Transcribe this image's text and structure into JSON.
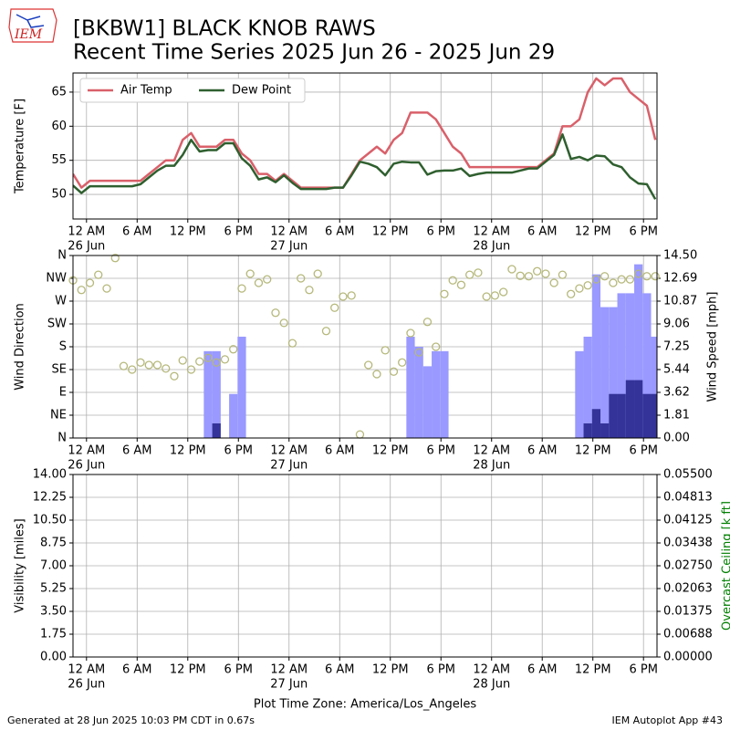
{
  "header": {
    "logo": "IEM",
    "title": [
      "[BKBW1] BLACK KNOB RAWS",
      "Recent Time Series 2025 Jun 26 - 2025 Jun 29"
    ]
  },
  "footer": {
    "left": "Generated at 28 Jun 2025 10:03 PM CDT in 0.67s",
    "right": "IEM Autoplot App #43"
  },
  "chart_data": [
    {
      "type": "line",
      "ylabel": "Temperature [F]",
      "grid": true,
      "legend": "upper left",
      "xlim": [
        -1.6,
        67.6
      ],
      "ylim": [
        46.4,
        67.8
      ],
      "yticks": [
        50,
        55,
        60,
        65
      ],
      "xticks": [
        {
          "value": 0,
          "label": "12 AM"
        },
        {
          "value": 6,
          "label": "6 AM"
        },
        {
          "value": 12,
          "label": "12 PM"
        },
        {
          "value": 18,
          "label": "6 PM"
        },
        {
          "value": 24,
          "label": "12 AM"
        },
        {
          "value": 30,
          "label": "6 AM"
        },
        {
          "value": 36,
          "label": "12 PM"
        },
        {
          "value": 42,
          "label": "6 PM"
        },
        {
          "value": 48,
          "label": "12 AM"
        },
        {
          "value": 54,
          "label": "6 AM"
        },
        {
          "value": 60,
          "label": "12 PM"
        },
        {
          "value": 66,
          "label": "6 PM"
        }
      ],
      "xdates": [
        {
          "value": 0,
          "label": "26 Jun"
        },
        {
          "value": 24,
          "label": "27 Jun"
        },
        {
          "value": 48,
          "label": "28 Jun"
        }
      ],
      "x": [
        -1.6,
        -0.6,
        0.4,
        1.4,
        2.4,
        3.4,
        4.4,
        5.4,
        6.4,
        7.4,
        8.4,
        9.4,
        10.4,
        11.4,
        12.4,
        13.4,
        14.4,
        15.4,
        16.4,
        17.4,
        18.4,
        19.4,
        20.4,
        21.4,
        22.4,
        23.4,
        24.4,
        25.4,
        26.4,
        27.4,
        28.4,
        29.4,
        30.4,
        31.4,
        32.4,
        33.4,
        34.4,
        35.4,
        36.4,
        37.4,
        38.4,
        39.4,
        40.4,
        41.4,
        42.4,
        43.4,
        44.4,
        45.4,
        46.4,
        47.4,
        48.4,
        49.4,
        50.4,
        51.4,
        52.4,
        53.4,
        54.4,
        55.4,
        56.4,
        57.4,
        58.4,
        59.4,
        60.4,
        61.4,
        62.4,
        63.4,
        64.4,
        65.4,
        66.4,
        67.4
      ],
      "series": [
        {
          "name": "Air Temp",
          "color": "#d9606a",
          "values": [
            53,
            51,
            52,
            52,
            52,
            52,
            52,
            52,
            52,
            53,
            54,
            55,
            55,
            58,
            59,
            57,
            57,
            57,
            58,
            58,
            56,
            55,
            53,
            53,
            52,
            53,
            52,
            51,
            51,
            51,
            51,
            51,
            51,
            53,
            55,
            56,
            57,
            56,
            58,
            59,
            62,
            62,
            62,
            61,
            59,
            57,
            56,
            54,
            54,
            54,
            54,
            54,
            54,
            54,
            54,
            54,
            55,
            56,
            60,
            60,
            61,
            65,
            67,
            66,
            67,
            67,
            65,
            64,
            63,
            58
          ]
        },
        {
          "name": "Dew Point",
          "color": "#2f5f2f",
          "values": [
            51.3,
            50.2,
            51.2,
            51.2,
            51.2,
            51.2,
            51.2,
            51.2,
            51.5,
            52.5,
            53.5,
            54.2,
            54.2,
            55.8,
            58,
            56.3,
            56.5,
            56.5,
            57.5,
            57.5,
            55.3,
            54.2,
            52.2,
            52.5,
            51.8,
            52.8,
            51.7,
            50.8,
            50.8,
            50.8,
            50.8,
            51,
            51,
            52.8,
            54.8,
            54.5,
            54,
            52.8,
            54.5,
            54.8,
            54.7,
            54.7,
            52.9,
            53.4,
            53.5,
            53.5,
            53.8,
            52.7,
            53,
            53.2,
            53.2,
            53.2,
            53.2,
            53.5,
            53.8,
            53.8,
            54.8,
            55.8,
            58.8,
            55.2,
            55.5,
            55,
            55.7,
            55.6,
            54.4,
            54,
            52.5,
            51.6,
            51.5,
            49.3
          ]
        }
      ]
    },
    {
      "type": "scatter",
      "ylabel": "Wind Direction",
      "y2label": "Wind Speed [mph]",
      "grid": true,
      "xlim": [
        -1.6,
        67.6
      ],
      "ylim": [
        0,
        360
      ],
      "y2lim": [
        0,
        14.5
      ],
      "yticks": [
        {
          "value": 0,
          "label": "N"
        },
        {
          "value": 45,
          "label": "NE"
        },
        {
          "value": 90,
          "label": "E"
        },
        {
          "value": 135,
          "label": "SE"
        },
        {
          "value": 180,
          "label": "S"
        },
        {
          "value": 225,
          "label": "SW"
        },
        {
          "value": 270,
          "label": "W"
        },
        {
          "value": 315,
          "label": "NW"
        },
        {
          "value": 360,
          "label": "N"
        }
      ],
      "y2ticks": [
        {
          "value": 0,
          "label": "0.00"
        },
        {
          "value": 1.8125,
          "label": "1.81"
        },
        {
          "value": 3.625,
          "label": "3.62"
        },
        {
          "value": 5.4375,
          "label": "5.44"
        },
        {
          "value": 7.25,
          "label": "7.25"
        },
        {
          "value": 9.0625,
          "label": "9.06"
        },
        {
          "value": 10.875,
          "label": "10.87"
        },
        {
          "value": 12.6875,
          "label": "12.69"
        },
        {
          "value": 14.5,
          "label": "14.50"
        }
      ],
      "xticks": [
        {
          "value": 0,
          "label": "12 AM"
        },
        {
          "value": 6,
          "label": "6 AM"
        },
        {
          "value": 12,
          "label": "12 PM"
        },
        {
          "value": 18,
          "label": "6 PM"
        },
        {
          "value": 24,
          "label": "12 AM"
        },
        {
          "value": 30,
          "label": "6 AM"
        },
        {
          "value": 36,
          "label": "12 PM"
        },
        {
          "value": 42,
          "label": "6 PM"
        },
        {
          "value": 48,
          "label": "12 AM"
        },
        {
          "value": 54,
          "label": "6 AM"
        },
        {
          "value": 60,
          "label": "12 PM"
        },
        {
          "value": 66,
          "label": "6 PM"
        }
      ],
      "xdates": [
        {
          "value": 0,
          "label": "26 Jun"
        },
        {
          "value": 24,
          "label": "27 Jun"
        },
        {
          "value": 48,
          "label": "28 Jun"
        }
      ],
      "x": [
        -1.6,
        -0.6,
        0.4,
        1.4,
        2.4,
        3.4,
        4.4,
        5.4,
        6.4,
        7.4,
        8.4,
        9.4,
        10.4,
        11.4,
        12.4,
        13.4,
        14.4,
        15.4,
        16.4,
        17.4,
        18.4,
        19.4,
        20.4,
        21.4,
        22.4,
        23.4,
        24.4,
        25.4,
        26.4,
        27.4,
        28.4,
        29.4,
        30.4,
        31.4,
        32.4,
        33.4,
        34.4,
        35.4,
        36.4,
        37.4,
        38.4,
        39.4,
        40.4,
        41.4,
        42.4,
        43.4,
        44.4,
        45.4,
        46.4,
        47.4,
        48.4,
        49.4,
        50.4,
        51.4,
        52.4,
        53.4,
        54.4,
        55.4,
        56.4,
        57.4,
        58.4,
        59.4,
        60.4,
        61.4,
        62.4,
        63.4,
        64.4,
        65.4,
        66.4,
        67.4
      ],
      "series": [
        {
          "type": "bar",
          "axis": "y2",
          "color": "#9999ff",
          "values": [
            0,
            0,
            0,
            0,
            0,
            0,
            0,
            0,
            0,
            0,
            0,
            0,
            0,
            0,
            0,
            0,
            6.9,
            6.9,
            0,
            3.5,
            8.05,
            0,
            0,
            0,
            0,
            0,
            0,
            0,
            0,
            0,
            0,
            0,
            0,
            0,
            0,
            0,
            0,
            0,
            0,
            0,
            8.05,
            7.25,
            5.7,
            6.9,
            6.9,
            0,
            0,
            0,
            0,
            0,
            0,
            0,
            0,
            0,
            0,
            0,
            0,
            0,
            0,
            0,
            6.9,
            8.05,
            13,
            10.4,
            10.4,
            11.5,
            11.5,
            13.8,
            11.5,
            8.05
          ]
        },
        {
          "type": "bar",
          "axis": "y2",
          "color": "#333399",
          "values": [
            0,
            0,
            0,
            0,
            0,
            0,
            0,
            0,
            0,
            0,
            0,
            0,
            0,
            0,
            0,
            0,
            0,
            1.16,
            0,
            0,
            0,
            0,
            0,
            0,
            0,
            0,
            0,
            0,
            0,
            0,
            0,
            0,
            0,
            0,
            0,
            0,
            0,
            0,
            0,
            0,
            0,
            0,
            0,
            0,
            0,
            0,
            0,
            0,
            0,
            0,
            0,
            0,
            0,
            0,
            0,
            0,
            0,
            0,
            0,
            0,
            0,
            1.16,
            2.3,
            1.16,
            3.5,
            3.5,
            4.6,
            4.6,
            3.5,
            3.5
          ]
        },
        {
          "type": "scatter",
          "color": "#b5b87a",
          "values": [
            311,
            292,
            306,
            322,
            295,
            355,
            142,
            135,
            149,
            144,
            144,
            137,
            122,
            153,
            135,
            151,
            158,
            149,
            155,
            175,
            295,
            324,
            306,
            313,
            247,
            227,
            187,
            315,
            292,
            324,
            211,
            257,
            279,
            281,
            7,
            144,
            126,
            173,
            131,
            149,
            207,
            169,
            229,
            180,
            284,
            311,
            302,
            322,
            326,
            279,
            281,
            288,
            333,
            320,
            319,
            329,
            324,
            306,
            322,
            284,
            295,
            301,
            313,
            319,
            306,
            313,
            313,
            324,
            319,
            319
          ]
        }
      ]
    },
    {
      "type": "line",
      "ylabel": "Visibility [miles]",
      "y2label": "Overcast Ceiling [k ft]",
      "y2label_color": "#008000",
      "grid": true,
      "xlabel": "Plot Time Zone: America/Los_Angeles",
      "xlim": [
        -1.6,
        67.6
      ],
      "ylim": [
        0,
        14
      ],
      "y2lim": [
        0,
        0.055
      ],
      "yticks": [
        {
          "value": 0,
          "label": "0.00"
        },
        {
          "value": 1.75,
          "label": "1.75"
        },
        {
          "value": 3.5,
          "label": "3.50"
        },
        {
          "value": 5.25,
          "label": "5.25"
        },
        {
          "value": 7,
          "label": "7.00"
        },
        {
          "value": 8.75,
          "label": "8.75"
        },
        {
          "value": 10.5,
          "label": "10.50"
        },
        {
          "value": 12.25,
          "label": "12.25"
        },
        {
          "value": 14,
          "label": "14.00"
        }
      ],
      "y2ticks": [
        {
          "value": 0,
          "label": "0.00000"
        },
        {
          "value": 0.006875,
          "label": "0.00688"
        },
        {
          "value": 0.01375,
          "label": "0.01375"
        },
        {
          "value": 0.020625,
          "label": "0.02063"
        },
        {
          "value": 0.0275,
          "label": "0.02750"
        },
        {
          "value": 0.034375,
          "label": "0.03438"
        },
        {
          "value": 0.04125,
          "label": "0.04125"
        },
        {
          "value": 0.048125,
          "label": "0.04813"
        },
        {
          "value": 0.055,
          "label": "0.05500"
        }
      ],
      "xticks": [
        {
          "value": 0,
          "label": "12 AM"
        },
        {
          "value": 6,
          "label": "6 AM"
        },
        {
          "value": 12,
          "label": "12 PM"
        },
        {
          "value": 18,
          "label": "6 PM"
        },
        {
          "value": 24,
          "label": "12 AM"
        },
        {
          "value": 30,
          "label": "6 AM"
        },
        {
          "value": 36,
          "label": "12 PM"
        },
        {
          "value": 42,
          "label": "6 PM"
        },
        {
          "value": 48,
          "label": "12 AM"
        },
        {
          "value": 54,
          "label": "6 AM"
        },
        {
          "value": 60,
          "label": "12 PM"
        },
        {
          "value": 66,
          "label": "6 PM"
        }
      ],
      "xdates": [
        {
          "value": 0,
          "label": "26 Jun"
        },
        {
          "value": 24,
          "label": "27 Jun"
        },
        {
          "value": 48,
          "label": "28 Jun"
        }
      ]
    }
  ]
}
